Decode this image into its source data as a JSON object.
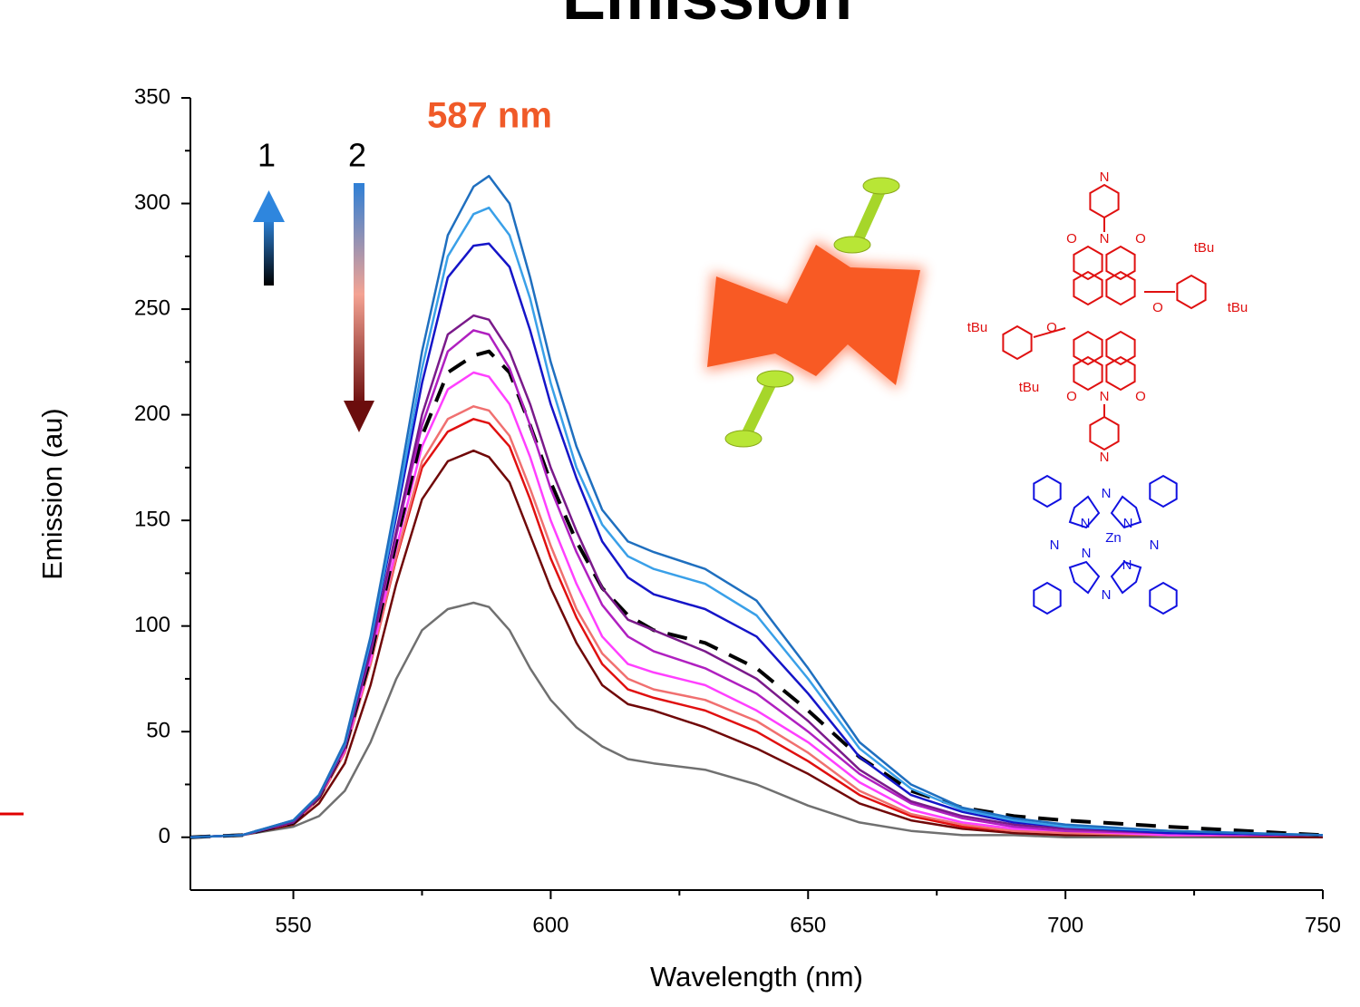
{
  "chart_data": {
    "type": "line",
    "title": "Emission",
    "x_label": "Wavelength (nm)",
    "y_label": "Emission (au)",
    "xlim": [
      530,
      750
    ],
    "ylim": [
      -25,
      350
    ],
    "xticks": [
      550,
      600,
      650,
      700,
      750
    ],
    "xminorticks": [
      575,
      625,
      675,
      725
    ],
    "yticks": [
      0,
      50,
      100,
      150,
      200,
      250,
      300,
      350
    ],
    "yminorticks": [
      25,
      75,
      125,
      175,
      225,
      275,
      325
    ],
    "x": [
      530,
      540,
      550,
      555,
      560,
      565,
      570,
      575,
      580,
      585,
      588,
      592,
      596,
      600,
      605,
      610,
      615,
      620,
      630,
      640,
      650,
      660,
      670,
      680,
      690,
      700,
      720,
      750
    ],
    "series": [
      {
        "color": "#1f6fbf",
        "values": [
          0,
          1,
          8,
          20,
          45,
          95,
          160,
          230,
          285,
          308,
          313,
          300,
          265,
          225,
          185,
          155,
          140,
          135,
          127,
          112,
          80,
          45,
          25,
          14,
          9,
          6,
          3,
          1
        ]
      },
      {
        "color": "#3aa0e8",
        "values": [
          0,
          1,
          8,
          20,
          44,
          93,
          155,
          222,
          275,
          295,
          298,
          285,
          255,
          215,
          175,
          148,
          133,
          127,
          120,
          105,
          75,
          42,
          23,
          13,
          8,
          5,
          3,
          1
        ]
      },
      {
        "color": "#1515c8",
        "values": [
          0,
          1,
          8,
          20,
          44,
          92,
          152,
          215,
          265,
          280,
          281,
          270,
          240,
          205,
          170,
          140,
          123,
          115,
          108,
          95,
          68,
          38,
          20,
          12,
          7,
          5,
          2,
          1
        ]
      },
      {
        "color": "#7a1a8a",
        "values": [
          0,
          1,
          7,
          19,
          42,
          88,
          145,
          200,
          238,
          247,
          245,
          230,
          205,
          175,
          145,
          118,
          103,
          98,
          88,
          75,
          55,
          32,
          17,
          10,
          6,
          4,
          2,
          1
        ]
      },
      {
        "color": "#b020c0",
        "values": [
          0,
          1,
          7,
          19,
          42,
          87,
          143,
          195,
          230,
          240,
          238,
          222,
          195,
          165,
          135,
          110,
          95,
          88,
          80,
          68,
          50,
          30,
          16,
          9,
          5,
          3,
          2,
          1
        ]
      },
      {
        "color": "#000000",
        "dashed": true,
        "values": [
          0,
          1,
          7,
          19,
          42,
          85,
          140,
          190,
          220,
          228,
          230,
          220,
          195,
          168,
          140,
          118,
          105,
          98,
          92,
          80,
          60,
          38,
          22,
          14,
          10,
          8,
          5,
          1
        ]
      },
      {
        "color": "#ff40ff",
        "values": [
          0,
          1,
          7,
          19,
          41,
          84,
          137,
          185,
          212,
          220,
          218,
          205,
          180,
          150,
          120,
          95,
          82,
          78,
          72,
          60,
          45,
          26,
          13,
          7,
          4,
          3,
          1,
          1
        ]
      },
      {
        "color": "#f07070",
        "values": [
          0,
          1,
          7,
          18,
          40,
          82,
          133,
          178,
          198,
          204,
          202,
          190,
          165,
          138,
          108,
          87,
          75,
          70,
          65,
          55,
          40,
          22,
          11,
          6,
          3,
          2,
          1,
          1
        ]
      },
      {
        "color": "#e01010",
        "values": [
          0,
          1,
          7,
          18,
          40,
          82,
          132,
          175,
          192,
          198,
          196,
          185,
          160,
          132,
          104,
          82,
          70,
          66,
          60,
          50,
          36,
          20,
          10,
          5,
          3,
          2,
          1,
          1
        ]
      },
      {
        "color": "#700808",
        "values": [
          0,
          1,
          6,
          16,
          35,
          72,
          120,
          160,
          178,
          183,
          180,
          168,
          143,
          118,
          92,
          72,
          63,
          60,
          52,
          42,
          30,
          16,
          8,
          4,
          2,
          1,
          1,
          0
        ]
      },
      {
        "color": "#707070",
        "values": [
          0,
          1,
          5,
          10,
          22,
          45,
          75,
          98,
          108,
          111,
          109,
          98,
          80,
          65,
          52,
          43,
          37,
          35,
          32,
          25,
          15,
          7,
          3,
          1,
          1,
          0,
          0,
          0
        ]
      }
    ],
    "annotations": [
      "587 nm",
      "1",
      "2"
    ],
    "pdi_labels": [
      "N",
      "O",
      "N",
      "O",
      "tBu",
      "O",
      "tBu",
      "tBu",
      "O",
      "tBu",
      "O",
      "N",
      "O",
      "N"
    ],
    "pc_labels": [
      "N",
      "N",
      "N",
      "Zn",
      "N",
      "N",
      "N",
      "N",
      "N"
    ]
  }
}
